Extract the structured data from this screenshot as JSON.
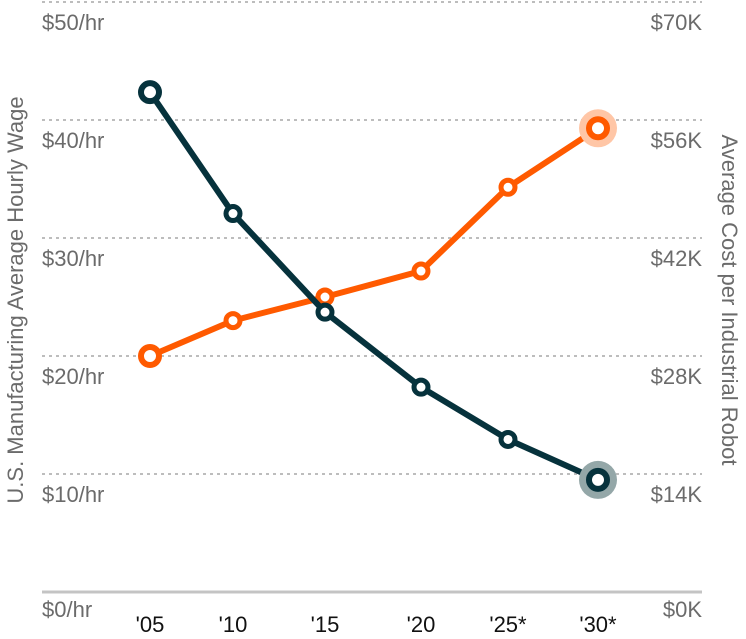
{
  "chart_data": {
    "type": "line",
    "title": "",
    "categories": [
      "'05",
      "'10",
      "'15",
      "'20",
      "'25*",
      "'30*"
    ],
    "xlabel": "",
    "ylabel": "U.S. Manufacturing Average Hourly Wage",
    "ylabel_right": "Average Cost per Industrial Robot",
    "ylim": [
      0,
      50
    ],
    "ylim_right": [
      0,
      70
    ],
    "yticks_left": [
      "$0/hr",
      "$10/hr",
      "$20/hr",
      "$30/hr",
      "$40/hr",
      "$50/hr"
    ],
    "yticks_right": [
      "$0K",
      "$14K",
      "$28K",
      "$42K",
      "$56K",
      "$70K"
    ],
    "grid": true,
    "legend": null,
    "series": [
      {
        "name": "U.S. Manufacturing Average Hourly Wage",
        "axis": "left",
        "unit": "$/hr",
        "color": "#ff5a00",
        "halo_color": "#ffc6a6",
        "values": [
          20.0,
          23.0,
          25.0,
          27.2,
          34.3,
          39.3
        ]
      },
      {
        "name": "Average Cost per Industrial Robot",
        "axis": "right",
        "unit": "$K",
        "color": "#06323c",
        "halo_color": "#94a7a8",
        "values": [
          59.3,
          44.9,
          33.2,
          24.3,
          18.1,
          13.3
        ]
      }
    ]
  },
  "labels": {
    "left_axis_title": "U.S. Manufacturing Average Hourly Wage",
    "right_axis_title": "Average Cost per Industrial Robot",
    "left_ticks": [
      "$0/hr",
      "$10/hr",
      "$20/hr",
      "$30/hr",
      "$40/hr",
      "$50/hr"
    ],
    "right_ticks": [
      "$0K",
      "$14K",
      "$28K",
      "$42K",
      "$56K",
      "$70K"
    ],
    "x_ticks": [
      "'05",
      "'10",
      "'15",
      "'20",
      "'25*",
      "'30*"
    ]
  }
}
